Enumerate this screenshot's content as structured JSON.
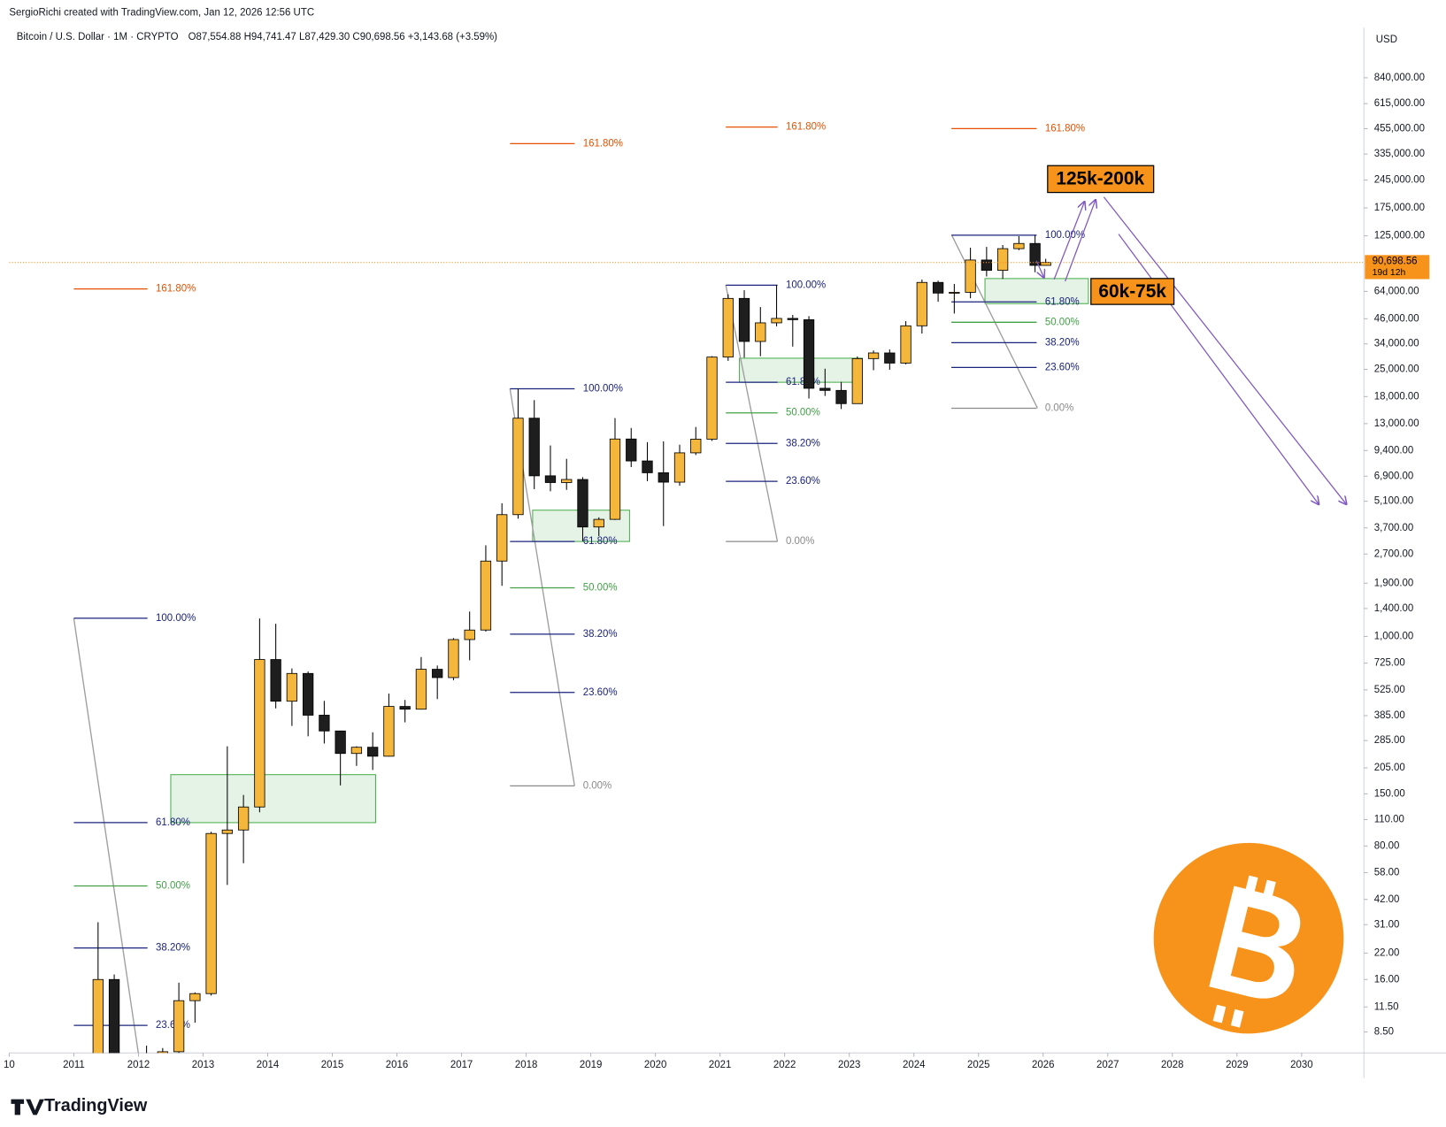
{
  "header": {
    "author": "SergioRichi created with TradingView.com, Jan 12, 2026 12:56 UTC",
    "symbol": "Bitcoin / U.S. Dollar · 1M · CRYPTO",
    "ohlc": "O87,554.88 H94,741.47 L87,429.30 C90,698.56 +3,143.68 (+3.59%)"
  },
  "footer": {
    "brand": "TradingView"
  },
  "chart_data": {
    "type": "candlestick",
    "currency": "USD",
    "log_scale": true,
    "up_color": "#f5b63c",
    "down_color": "#1e1e1e",
    "xlim": [
      2010,
      2030.95
    ],
    "xticks": [
      {
        "value": 2010,
        "label": "10"
      },
      2011,
      2012,
      2013,
      2014,
      2015,
      2016,
      2017,
      2018,
      2019,
      2020,
      2021,
      2022,
      2023,
      2024,
      2025,
      2026,
      2027,
      2028,
      2029,
      2030
    ],
    "ylim": [
      6.6,
      1535000
    ],
    "yticks": [
      {
        "value": 840000,
        "label": "840,000.00"
      },
      {
        "value": 615000,
        "label": "615,000.00"
      },
      {
        "value": 455000,
        "label": "455,000.00"
      },
      {
        "value": 335000,
        "label": "335,000.00"
      },
      {
        "value": 245000,
        "label": "245,000.00"
      },
      {
        "value": 175000,
        "label": "175,000.00"
      },
      {
        "value": 125000,
        "label": "125,000.00"
      },
      {
        "value": 64000,
        "label": "64,000.00"
      },
      {
        "value": 46000,
        "label": "46,000.00"
      },
      {
        "value": 34000,
        "label": "34,000.00"
      },
      {
        "value": 25000,
        "label": "25,000.00"
      },
      {
        "value": 18000,
        "label": "18,000.00"
      },
      {
        "value": 13000,
        "label": "13,000.00"
      },
      {
        "value": 9400,
        "label": "9,400.00"
      },
      {
        "value": 6900,
        "label": "6,900.00"
      },
      {
        "value": 5100,
        "label": "5,100.00"
      },
      {
        "value": 3700,
        "label": "3,700.00"
      },
      {
        "value": 2700,
        "label": "2,700.00"
      },
      {
        "value": 1900,
        "label": "1,900.00"
      },
      {
        "value": 1400,
        "label": "1,400.00"
      },
      {
        "value": 1000,
        "label": "1,000.00"
      },
      {
        "value": 725,
        "label": "725.00"
      },
      {
        "value": 525,
        "label": "525.00"
      },
      {
        "value": 385,
        "label": "385.00"
      },
      {
        "value": 285,
        "label": "285.00"
      },
      {
        "value": 205,
        "label": "205.00"
      },
      {
        "value": 150,
        "label": "150.00"
      },
      {
        "value": 110,
        "label": "110.00"
      },
      {
        "value": 80,
        "label": "80.00"
      },
      {
        "value": 58,
        "label": "58.00"
      },
      {
        "value": 42,
        "label": "42.00"
      },
      {
        "value": 31,
        "label": "31.00"
      },
      {
        "value": 22,
        "label": "22.00"
      },
      {
        "value": 16,
        "label": "16.00"
      },
      {
        "value": 11.5,
        "label": "11.50"
      },
      {
        "value": 8.5,
        "label": "8.50"
      }
    ],
    "last_price": {
      "value": 90698.56,
      "label": "90,698.56",
      "countdown": "19d 12h",
      "color": "#f7931a"
    },
    "x": [
      2011.375,
      2011.625,
      2011.875,
      2012.125,
      2012.375,
      2012.625,
      2012.875,
      2013.125,
      2013.375,
      2013.625,
      2013.875,
      2014.125,
      2014.375,
      2014.625,
      2014.875,
      2015.125,
      2015.375,
      2015.625,
      2015.875,
      2016.125,
      2016.375,
      2016.625,
      2016.875,
      2017.125,
      2017.375,
      2017.625,
      2017.875,
      2018.125,
      2018.375,
      2018.625,
      2018.875,
      2019.125,
      2019.375,
      2019.625,
      2019.875,
      2020.125,
      2020.375,
      2020.625,
      2020.875,
      2021.125,
      2021.375,
      2021.625,
      2021.875,
      2022.125,
      2022.375,
      2022.625,
      2022.875,
      2023.125,
      2023.375,
      2023.625,
      2023.875,
      2024.125,
      2024.375,
      2024.625,
      2024.875,
      2025.125,
      2025.375,
      2025.625,
      2025.875,
      2026.04
    ],
    "open": [
      3.5,
      16,
      5.1,
      4.7,
      4.9,
      6.7,
      12.4,
      13.5,
      93,
      97,
      128,
      757,
      458,
      640,
      387,
      320,
      244,
      263,
      236,
      430,
      416,
      673,
      609,
      963,
      1080,
      2480,
      4340,
      13880,
      6930,
      6390,
      6630,
      3740,
      4100,
      10800,
      8290,
      7190,
      6420,
      9140,
      10780,
      28990,
      58800,
      35000,
      43800,
      46200,
      45500,
      19900,
      19400,
      16540,
      28470,
      30470,
      26960,
      42260,
      71300,
      62700,
      63300,
      93400,
      82500,
      107100,
      114000,
      87554.88
    ],
    "high": [
      31.9,
      17,
      5.5,
      7.2,
      7,
      15.4,
      13.7,
      95,
      266,
      148,
      1242,
      1165,
      680,
      655,
      460,
      320,
      266,
      315,
      502,
      465,
      780,
      704,
      980,
      1350,
      3000,
      4980,
      19800,
      17250,
      9990,
      8500,
      6820,
      4200,
      13900,
      12340,
      10400,
      10500,
      10080,
      12480,
      29300,
      61800,
      64900,
      53000,
      69000,
      48200,
      47500,
      25200,
      21500,
      29200,
      31400,
      31800,
      44700,
      73800,
      72800,
      70000,
      108300,
      109400,
      111900,
      124500,
      126200,
      94741.47
    ],
    "low": [
      3,
      4.5,
      2,
      4.3,
      4.7,
      6.6,
      9.5,
      13.2,
      50,
      65,
      120,
      420,
      340,
      300,
      275,
      166,
      210,
      200,
      235,
      355,
      414,
      470,
      590,
      750,
      1060,
      1840,
      4130,
      5900,
      5750,
      5850,
      3150,
      3350,
      4070,
      7700,
      6500,
      3780,
      6150,
      8900,
      10550,
      27700,
      28800,
      29300,
      42000,
      32900,
      17600,
      18150,
      15500,
      16500,
      24750,
      24900,
      26550,
      38500,
      56500,
      49000,
      58900,
      76600,
      74400,
      105200,
      80600,
      87429.3
    ],
    "close": [
      16,
      5.1,
      4.7,
      4.9,
      6.7,
      12.4,
      13.5,
      93,
      97,
      128,
      757,
      458,
      640,
      387,
      320,
      244,
      263,
      236,
      430,
      416,
      673,
      609,
      963,
      1080,
      2480,
      4340,
      13880,
      6930,
      6390,
      6630,
      3740,
      4100,
      10800,
      8290,
      7190,
      6420,
      9140,
      10780,
      28990,
      58800,
      35000,
      43800,
      46200,
      45500,
      19900,
      19400,
      16540,
      28470,
      30470,
      26960,
      42260,
      71300,
      62700,
      63300,
      93400,
      82500,
      107100,
      114000,
      87550,
      90698.56
    ],
    "fib_sets": [
      {
        "x": [
          2011,
          2012.14
        ],
        "levels": [
          {
            "label": "161.80%",
            "value": 65900,
            "color": "#e65100"
          },
          {
            "label": "100.00%",
            "value": 1245,
            "color": "#1a237e"
          },
          {
            "label": "61.80%",
            "value": 106,
            "color": "#1a237e"
          },
          {
            "label": "50.00%",
            "value": 49.4,
            "color": "#43a047"
          },
          {
            "label": "38.20%",
            "value": 23.4,
            "color": "#1a237e"
          },
          {
            "label": "23.60%",
            "value": 9.2,
            "color": "#1a237e"
          }
        ]
      },
      {
        "x": [
          2017.75,
          2018.75
        ],
        "levels": [
          {
            "label": "161.80%",
            "value": 380000,
            "color": "#e65100"
          },
          {
            "label": "100.00%",
            "value": 19770,
            "color": "#1a237e"
          },
          {
            "label": "61.80%",
            "value": 3140,
            "color": "#1a237e"
          },
          {
            "label": "50.00%",
            "value": 1796,
            "color": "#43a047"
          },
          {
            "label": "38.20%",
            "value": 1028,
            "color": "#1a237e"
          },
          {
            "label": "23.60%",
            "value": 509,
            "color": "#1a237e"
          },
          {
            "label": "0.00%",
            "value": 165,
            "color": "#8a8a8a"
          }
        ]
      },
      {
        "x": [
          2021.09,
          2021.89
        ],
        "levels": [
          {
            "label": "161.80%",
            "value": 464000,
            "color": "#e65100"
          },
          {
            "label": "100.00%",
            "value": 69000,
            "color": "#1a237e"
          },
          {
            "label": "61.80%",
            "value": 21400,
            "color": "#1a237e"
          },
          {
            "label": "50.00%",
            "value": 14800,
            "color": "#43a047"
          },
          {
            "label": "38.20%",
            "value": 10240,
            "color": "#1a237e"
          },
          {
            "label": "23.60%",
            "value": 6480,
            "color": "#1a237e"
          },
          {
            "label": "0.00%",
            "value": 3140,
            "color": "#8a8a8a"
          }
        ]
      },
      {
        "x": [
          2024.58,
          2025.9
        ],
        "levels": [
          {
            "label": "161.80%",
            "value": 455000,
            "color": "#e65100"
          },
          {
            "label": "100.00%",
            "value": 126000,
            "color": "#1a237e"
          },
          {
            "label": "61.80%",
            "value": 56400,
            "color": "#1a237e"
          },
          {
            "label": "50.00%",
            "value": 44100,
            "color": "#43a047"
          },
          {
            "label": "38.20%",
            "value": 34500,
            "color": "#1a237e"
          },
          {
            "label": "23.60%",
            "value": 25600,
            "color": "#1a237e"
          },
          {
            "label": "0.00%",
            "value": 15650,
            "color": "#8a8a8a"
          }
        ]
      }
    ],
    "zones": [
      {
        "x": [
          2012.5,
          2015.67
        ],
        "y": [
          106,
          189
        ]
      },
      {
        "x": [
          2018.1,
          2019.6
        ],
        "y": [
          3140,
          4580
        ]
      },
      {
        "x": [
          2021.3,
          2023.2
        ],
        "y": [
          21400,
          28600
        ]
      },
      {
        "x": [
          2025.1,
          2026.7
        ],
        "y": [
          55200,
          74700
        ]
      }
    ],
    "annotations": [
      {
        "text": "125k-200k"
      },
      {
        "text": "60k-75k"
      }
    ]
  }
}
